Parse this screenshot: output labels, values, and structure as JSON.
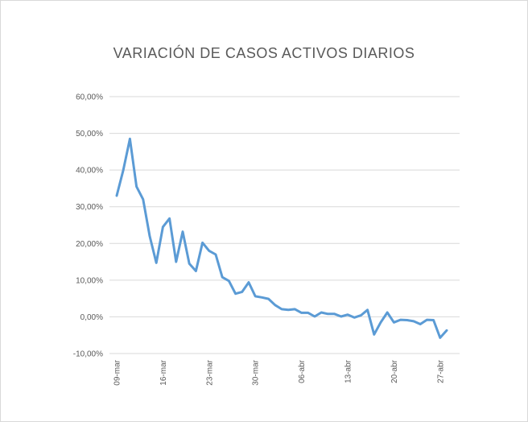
{
  "chart_data": {
    "type": "line",
    "title": "VARIACIÓN DE CASOS ACTIVOS DIARIOS",
    "xlabel": "",
    "ylabel": "",
    "ylim": [
      -0.1,
      0.6
    ],
    "y_ticks": [
      -0.1,
      0.0,
      0.1,
      0.2,
      0.3,
      0.4,
      0.5,
      0.6
    ],
    "y_tick_labels": [
      "-10,00%",
      "0,00%",
      "10,00%",
      "20,00%",
      "30,00%",
      "40,00%",
      "50,00%",
      "60,00%"
    ],
    "x_ticks": [
      {
        "index": 0,
        "label": "09-mar"
      },
      {
        "index": 7,
        "label": "16-mar"
      },
      {
        "index": 14,
        "label": "23-mar"
      },
      {
        "index": 21,
        "label": "30-mar"
      },
      {
        "index": 28,
        "label": "06-abr"
      },
      {
        "index": 35,
        "label": "13-abr"
      },
      {
        "index": 42,
        "label": "20-abr"
      },
      {
        "index": 49,
        "label": "27-abr"
      }
    ],
    "grid": true,
    "line_color": "#5b9bd5",
    "series": [
      {
        "values": [
          0.33,
          0.4,
          0.485,
          0.355,
          0.32,
          0.22,
          0.147,
          0.245,
          0.268,
          0.15,
          0.232,
          0.145,
          0.125,
          0.202,
          0.18,
          0.17,
          0.108,
          0.098,
          0.063,
          0.068,
          0.094,
          0.056,
          0.053,
          0.049,
          0.032,
          0.021,
          0.019,
          0.021,
          0.011,
          0.011,
          0.001,
          0.012,
          0.008,
          0.008,
          0.001,
          0.006,
          -0.002,
          0.004,
          0.019,
          -0.048,
          -0.015,
          0.012,
          -0.015,
          -0.008,
          -0.009,
          -0.012,
          -0.02,
          -0.008,
          -0.009,
          -0.057,
          -0.037
        ]
      }
    ]
  }
}
